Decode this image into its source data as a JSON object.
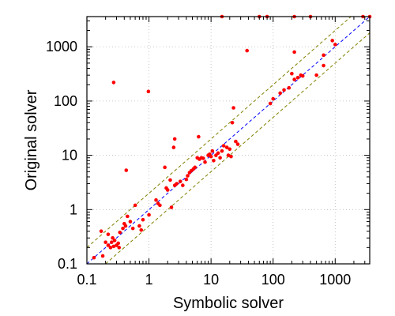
{
  "chart_data": {
    "type": "scatter",
    "title": "",
    "xlabel": "Symbolic solver",
    "ylabel": "Original solver",
    "xscale": "log",
    "yscale": "log",
    "xlim": [
      0.1,
      3600
    ],
    "ylim": [
      0.1,
      3600
    ],
    "x_ticks": [
      {
        "value": 0.1,
        "label": "0.1"
      },
      {
        "value": 1,
        "label": "1"
      },
      {
        "value": 10,
        "label": "10"
      },
      {
        "value": 100,
        "label": "100"
      },
      {
        "value": 1000,
        "label": "1000"
      }
    ],
    "y_ticks": [
      {
        "value": 0.1,
        "label": "0.1"
      },
      {
        "value": 1,
        "label": "1"
      },
      {
        "value": 10,
        "label": "10"
      },
      {
        "value": 100,
        "label": "100"
      },
      {
        "value": 1000,
        "label": "1000"
      }
    ],
    "grid": true,
    "reference_lines": [
      {
        "kind": "y=x",
        "factor": 1,
        "color": "#0000ff",
        "style": "dashed"
      },
      {
        "kind": "y=factor*x",
        "factor": 2,
        "color": "#808000",
        "style": "dashed"
      },
      {
        "kind": "y=factor*x",
        "factor": 0.5,
        "color": "#808000",
        "style": "dashed"
      }
    ],
    "point_color": "#ff0000",
    "points": [
      [
        0.13,
        0.13
      ],
      [
        0.17,
        0.4
      ],
      [
        0.18,
        0.14
      ],
      [
        0.2,
        0.25
      ],
      [
        0.22,
        0.35
      ],
      [
        0.22,
        0.22
      ],
      [
        0.24,
        0.2
      ],
      [
        0.25,
        0.25
      ],
      [
        0.26,
        0.3
      ],
      [
        0.27,
        0.21
      ],
      [
        0.28,
        0.27
      ],
      [
        0.3,
        0.22
      ],
      [
        0.32,
        0.24
      ],
      [
        0.33,
        0.2
      ],
      [
        0.34,
        0.38
      ],
      [
        0.38,
        0.45
      ],
      [
        0.4,
        0.55
      ],
      [
        0.42,
        0.5
      ],
      [
        0.45,
        0.75
      ],
      [
        0.5,
        0.6
      ],
      [
        0.55,
        0.45
      ],
      [
        0.6,
        1.2
      ],
      [
        0.7,
        0.5
      ],
      [
        0.75,
        0.42
      ],
      [
        0.8,
        0.65
      ],
      [
        1.0,
        0.8
      ],
      [
        1.3,
        1.5
      ],
      [
        1.4,
        1.3
      ],
      [
        1.5,
        1.2
      ],
      [
        1.8,
        6.0
      ],
      [
        1.9,
        2.5
      ],
      [
        2.0,
        2.3
      ],
      [
        2.2,
        3.5
      ],
      [
        2.3,
        1.1
      ],
      [
        2.6,
        2.8
      ],
      [
        2.8,
        3.0
      ],
      [
        3.2,
        3.3
      ],
      [
        3.5,
        2.8
      ],
      [
        4.0,
        3.6
      ],
      [
        4.2,
        4.2
      ],
      [
        4.5,
        4.8
      ],
      [
        4.8,
        5.2
      ],
      [
        5.2,
        5.6
      ],
      [
        5.5,
        6.0
      ],
      [
        6.0,
        9.0
      ],
      [
        6.5,
        8.5
      ],
      [
        7.0,
        9.0
      ],
      [
        7.5,
        8.8
      ],
      [
        8.0,
        7.5
      ],
      [
        9.0,
        10.0
      ],
      [
        9.5,
        10.5
      ],
      [
        10.0,
        9.5
      ],
      [
        10.5,
        12.0
      ],
      [
        11.0,
        8.0
      ],
      [
        12.0,
        10.0
      ],
      [
        13.0,
        11.0
      ],
      [
        14.0,
        9.0
      ],
      [
        15.0,
        12.0
      ],
      [
        16.0,
        15.0
      ],
      [
        18.0,
        14.0
      ],
      [
        19.0,
        10.0
      ],
      [
        20.0,
        13.0
      ],
      [
        21.0,
        9.5
      ],
      [
        22.0,
        40.0
      ],
      [
        23.0,
        75.0
      ],
      [
        25.0,
        18.0
      ],
      [
        27.0,
        16.0
      ],
      [
        90.0,
        90.0
      ],
      [
        100.0,
        110.0
      ],
      [
        130.0,
        140.0
      ],
      [
        150.0,
        160.0
      ],
      [
        180.0,
        175.0
      ],
      [
        200.0,
        320.0
      ],
      [
        220.0,
        250.0
      ],
      [
        250.0,
        270.0
      ],
      [
        280.0,
        300.0
      ],
      [
        300.0,
        290.0
      ],
      [
        500.0,
        300.0
      ],
      [
        650.0,
        450.0
      ],
      [
        650.0,
        700.0
      ],
      [
        900.0,
        1300.0
      ],
      [
        1000.0,
        1100.0
      ],
      [
        0.27,
        220.0
      ],
      [
        0.43,
        5.3
      ],
      [
        0.98,
        150.0
      ],
      [
        2.5,
        14.0
      ],
      [
        2.6,
        20.0
      ],
      [
        6.3,
        22.0
      ],
      [
        38.0,
        850.0
      ],
      [
        220.0,
        800.0
      ],
      [
        15.0,
        3600.0
      ],
      [
        60.0,
        3600.0
      ],
      [
        80.0,
        3600.0
      ],
      [
        220.0,
        3600.0
      ],
      [
        400.0,
        3600.0
      ],
      [
        2800.0,
        3600.0
      ],
      [
        3600.0,
        3600.0
      ]
    ]
  }
}
